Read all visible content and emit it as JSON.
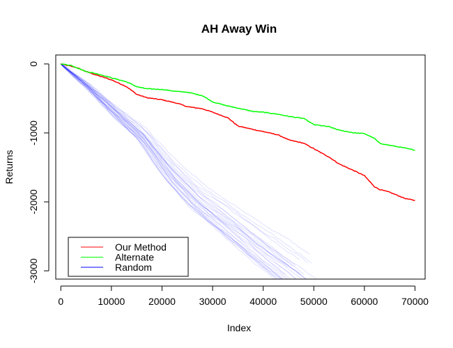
{
  "chart_data": {
    "type": "line",
    "title": "AH Away Win",
    "xlabel": "Index",
    "ylabel": "Returns",
    "xlim": [
      -1000,
      72000
    ],
    "ylim": [
      -3120,
      130
    ],
    "xticks": [
      {
        "value": 0,
        "label": "0"
      },
      {
        "value": 10000,
        "label": "10000"
      },
      {
        "value": 20000,
        "label": "20000"
      },
      {
        "value": 30000,
        "label": "30000"
      },
      {
        "value": 40000,
        "label": "40000"
      },
      {
        "value": 50000,
        "label": "50000"
      },
      {
        "value": 60000,
        "label": "60000"
      },
      {
        "value": 70000,
        "label": "70000"
      }
    ],
    "yticks": [
      {
        "value": 0,
        "label": "0"
      },
      {
        "value": -1000,
        "label": "-1000"
      },
      {
        "value": -2000,
        "label": "-2000"
      },
      {
        "value": -3000,
        "label": "-3000"
      }
    ],
    "grid": false,
    "legend": {
      "position": "bottom-left",
      "entries": [
        {
          "name": "Our Method",
          "color": "#ff0000"
        },
        {
          "name": "Alternate",
          "color": "#00ff00"
        },
        {
          "name": "Random",
          "color": "#0000ff"
        }
      ]
    },
    "series": [
      {
        "name": "Our Method",
        "color": "#ff0000",
        "x": [
          0,
          3000,
          5000,
          7000,
          10000,
          13000,
          15000,
          17000,
          20000,
          23000,
          25000,
          28000,
          30000,
          33000,
          35000,
          38000,
          40000,
          43000,
          45000,
          48000,
          50000,
          53000,
          55000,
          58000,
          60000,
          62000,
          63000,
          65000,
          68000,
          70000
        ],
        "values": [
          0,
          -50,
          -110,
          -160,
          -230,
          -330,
          -440,
          -490,
          -520,
          -570,
          -620,
          -650,
          -700,
          -780,
          -900,
          -950,
          -980,
          -1030,
          -1100,
          -1150,
          -1230,
          -1350,
          -1450,
          -1550,
          -1620,
          -1780,
          -1820,
          -1860,
          -1950,
          -1980
        ]
      },
      {
        "name": "Alternate",
        "color": "#00ff00",
        "x": [
          0,
          2000,
          5000,
          7000,
          10000,
          13000,
          15000,
          17000,
          20000,
          23000,
          25000,
          28000,
          30000,
          33000,
          35000,
          38000,
          40000,
          43000,
          45000,
          48000,
          50000,
          53000,
          55000,
          58000,
          60000,
          62000,
          63000,
          65000,
          68000,
          70000
        ],
        "values": [
          0,
          -20,
          -110,
          -140,
          -200,
          -260,
          -330,
          -360,
          -370,
          -400,
          -410,
          -460,
          -550,
          -610,
          -640,
          -690,
          -700,
          -730,
          -760,
          -790,
          -880,
          -910,
          -960,
          -1000,
          -1010,
          -1080,
          -1150,
          -1180,
          -1220,
          -1250
        ]
      },
      {
        "name": "Random",
        "color": "#0000ff",
        "x": [
          0,
          5000,
          10000,
          15000,
          20000,
          25000,
          30000,
          35000,
          40000,
          44000
        ],
        "values": [
          0,
          -330,
          -700,
          -1050,
          -1560,
          -1960,
          -2260,
          -2560,
          -2850,
          -3100
        ]
      }
    ]
  }
}
